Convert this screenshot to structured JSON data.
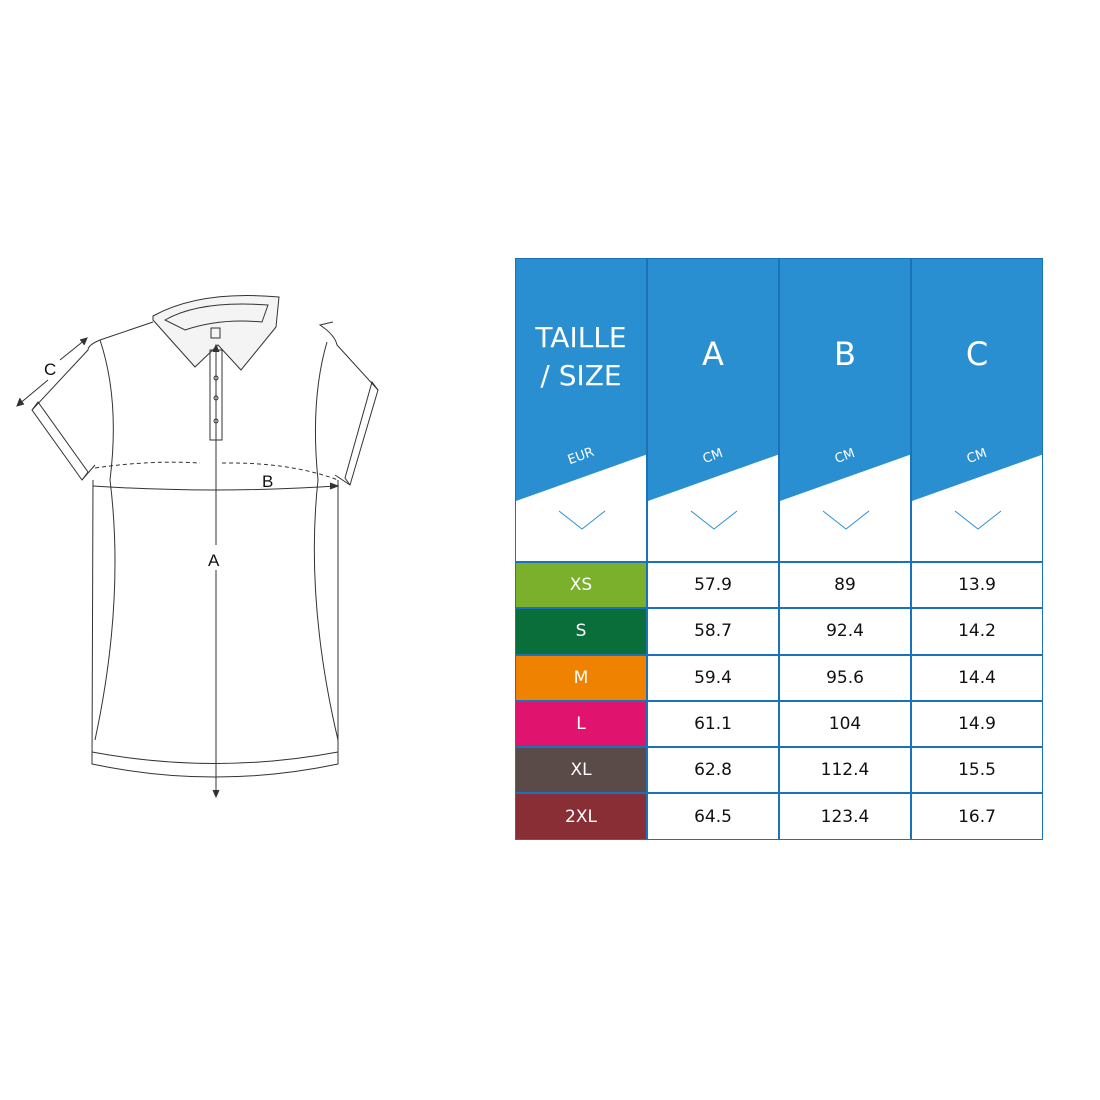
{
  "diagram": {
    "labels": {
      "a": "A",
      "b": "B",
      "c": "C"
    }
  },
  "table": {
    "header_color": "#2a8fd0",
    "columns": [
      {
        "title_line1": "TAILLE",
        "title_line2": "/ SIZE",
        "unit": "EUR"
      },
      {
        "title": "A",
        "unit": "CM"
      },
      {
        "title": "B",
        "unit": "CM"
      },
      {
        "title": "C",
        "unit": "CM"
      }
    ],
    "rows": [
      {
        "size": "XS",
        "color": "#7ab02b",
        "a": "57.9",
        "b": "89",
        "c": "13.9"
      },
      {
        "size": "S",
        "color": "#0a6e3a",
        "a": "58.7",
        "b": "92.4",
        "c": "14.2"
      },
      {
        "size": "M",
        "color": "#ef8200",
        "a": "59.4",
        "b": "95.6",
        "c": "14.4"
      },
      {
        "size": "L",
        "color": "#e0136f",
        "a": "61.1",
        "b": "104",
        "c": "14.9"
      },
      {
        "size": "XL",
        "color": "#5a4a48",
        "a": "62.8",
        "b": "112.4",
        "c": "15.5"
      },
      {
        "size": "2XL",
        "color": "#8a2e36",
        "a": "64.5",
        "b": "123.4",
        "c": "16.7"
      }
    ]
  }
}
